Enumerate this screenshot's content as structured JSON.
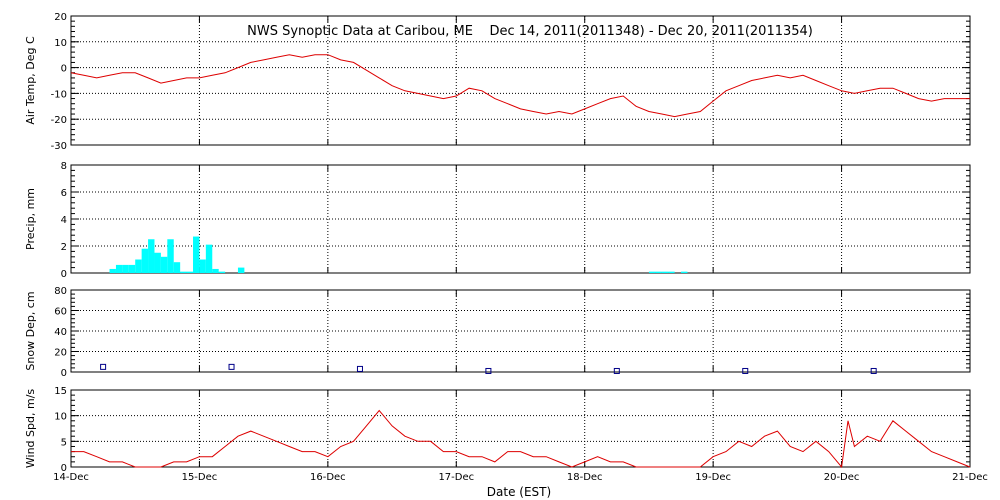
{
  "chart_data": {
    "type": "line",
    "title": "NWS Synoptic Data at Caribou, ME    Dec 14, 2011(2011348) - Dec 20, 2011(2011354)",
    "xlabel": "Date (EST)",
    "x_ticks": [
      "14-Dec",
      "15-Dec",
      "16-Dec",
      "17-Dec",
      "18-Dec",
      "19-Dec",
      "20-Dec",
      "21-Dec"
    ],
    "xlim": [
      0,
      7
    ],
    "grid": true,
    "colors": {
      "air_temp": "#dd0000",
      "precip": "#00ffff",
      "snow_depth": "#000088",
      "wind_speed": "#dd0000"
    },
    "panels": [
      {
        "id": "air-temp",
        "type": "line",
        "ylabel": "Air Temp, Deg C",
        "ylim": [
          -30,
          20
        ],
        "yticks": [
          -30,
          -20,
          -10,
          0,
          10,
          20
        ],
        "series": [
          {
            "x": [
              0,
              0.1,
              0.2,
              0.3,
              0.4,
              0.5,
              0.6,
              0.7,
              0.8,
              0.9,
              1.0,
              1.1,
              1.2,
              1.3,
              1.4,
              1.5,
              1.6,
              1.7,
              1.8,
              1.9,
              2.0,
              2.1,
              2.2,
              2.3,
              2.4,
              2.5,
              2.6,
              2.7,
              2.8,
              2.9,
              3.0,
              3.1,
              3.2,
              3.3,
              3.4,
              3.5,
              3.6,
              3.7,
              3.8,
              3.9,
              4.0,
              4.1,
              4.2,
              4.3,
              4.4,
              4.5,
              4.6,
              4.7,
              4.8,
              4.9,
              5.0,
              5.1,
              5.2,
              5.3,
              5.4,
              5.5,
              5.6,
              5.7,
              5.8,
              5.9,
              6.0,
              6.1,
              6.2,
              6.3,
              6.4,
              6.5,
              6.6,
              6.7,
              6.8,
              6.9,
              7.0
            ],
            "y": [
              -2,
              -3,
              -4,
              -3,
              -2,
              -2,
              -4,
              -6,
              -5,
              -4,
              -4,
              -3,
              -2,
              0,
              2,
              3,
              4,
              5,
              4,
              5,
              5,
              3,
              2,
              -1,
              -4,
              -7,
              -9,
              -10,
              -11,
              -12,
              -11,
              -8,
              -9,
              -12,
              -14,
              -16,
              -17,
              -18,
              -17,
              -18,
              -16,
              -14,
              -12,
              -11,
              -15,
              -17,
              -18,
              -19,
              -18,
              -17,
              -13,
              -9,
              -7,
              -5,
              -4,
              -3,
              -4,
              -3,
              -5,
              -7,
              -9,
              -10,
              -9,
              -8,
              -8,
              -10,
              -12,
              -13,
              -12,
              -12,
              -12
            ]
          }
        ]
      },
      {
        "id": "precip",
        "type": "bar",
        "ylabel": "Precip, mm",
        "ylim": [
          0,
          8
        ],
        "yticks": [
          0,
          2,
          4,
          6,
          8
        ],
        "series": [
          {
            "x": [
              0.3,
              0.35,
              0.4,
              0.45,
              0.5,
              0.55,
              0.6,
              0.65,
              0.7,
              0.75,
              0.8,
              0.85,
              0.9,
              0.95,
              1.0,
              1.05,
              1.1,
              1.15,
              1.3,
              4.5,
              4.55,
              4.6,
              4.65,
              4.75
            ],
            "values": [
              0.3,
              0.6,
              0.6,
              0.6,
              1.0,
              1.8,
              2.5,
              1.5,
              1.2,
              2.5,
              0.8,
              0.1,
              0.1,
              2.7,
              1.0,
              2.1,
              0.3,
              0.1,
              0.4,
              0.1,
              0.1,
              0.1,
              0.1,
              0.1
            ]
          }
        ]
      },
      {
        "id": "snow-depth",
        "type": "scatter",
        "ylabel": "Snow Dep, cm",
        "ylim": [
          0,
          80
        ],
        "yticks": [
          0,
          20,
          40,
          60,
          80
        ],
        "series": [
          {
            "x": [
              0.25,
              1.25,
              2.25,
              3.25,
              4.25,
              5.25,
              6.25
            ],
            "y": [
              5,
              5,
              3,
              1,
              1,
              1,
              1
            ]
          }
        ]
      },
      {
        "id": "wind-speed",
        "type": "line",
        "ylabel": "Wind Spd, m/s",
        "ylim": [
          0,
          15
        ],
        "yticks": [
          0,
          5,
          10,
          15
        ],
        "series": [
          {
            "x": [
              0,
              0.1,
              0.2,
              0.3,
              0.4,
              0.5,
              0.6,
              0.7,
              0.8,
              0.9,
              1.0,
              1.1,
              1.2,
              1.3,
              1.4,
              1.5,
              1.6,
              1.7,
              1.8,
              1.9,
              2.0,
              2.1,
              2.2,
              2.3,
              2.4,
              2.5,
              2.6,
              2.7,
              2.8,
              2.9,
              3.0,
              3.1,
              3.2,
              3.3,
              3.4,
              3.5,
              3.6,
              3.7,
              3.8,
              3.9,
              4.0,
              4.1,
              4.2,
              4.3,
              4.4,
              4.5,
              4.6,
              4.7,
              4.8,
              4.9,
              5.0,
              5.1,
              5.2,
              5.3,
              5.4,
              5.5,
              5.6,
              5.7,
              5.8,
              5.9,
              6.0,
              6.05,
              6.1,
              6.2,
              6.3,
              6.4,
              6.5,
              6.6,
              6.7,
              6.8,
              6.9,
              7.0
            ],
            "y": [
              3,
              3,
              2,
              1,
              1,
              0,
              0,
              0,
              1,
              1,
              2,
              2,
              4,
              6,
              7,
              6,
              5,
              4,
              3,
              3,
              2,
              4,
              5,
              8,
              11,
              8,
              6,
              5,
              5,
              3,
              3,
              2,
              2,
              1,
              3,
              3,
              2,
              2,
              1,
              0,
              1,
              2,
              1,
              1,
              0,
              0,
              0,
              0,
              0,
              0,
              2,
              3,
              5,
              4,
              6,
              7,
              4,
              3,
              5,
              3,
              0,
              9,
              4,
              6,
              5,
              9,
              7,
              5,
              3,
              2,
              1,
              0
            ]
          }
        ]
      }
    ]
  }
}
